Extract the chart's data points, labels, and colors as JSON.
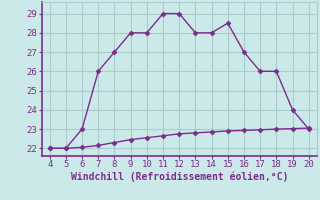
{
  "xlabel": "Windchill (Refroidissement éolien,°C)",
  "x_upper": [
    4,
    5,
    6,
    7,
    8,
    9,
    10,
    11,
    12,
    13,
    14,
    15,
    16,
    17,
    18,
    19,
    20
  ],
  "y_upper": [
    22,
    22,
    23,
    26,
    27,
    28,
    28,
    29,
    29,
    28,
    28,
    28.5,
    27,
    26,
    26,
    24,
    23
  ],
  "x_lower": [
    4,
    5,
    6,
    7,
    8,
    9,
    10,
    11,
    12,
    13,
    14,
    15,
    16,
    17,
    18,
    19,
    20
  ],
  "y_lower": [
    22,
    22,
    22.05,
    22.15,
    22.3,
    22.45,
    22.55,
    22.65,
    22.75,
    22.8,
    22.85,
    22.9,
    22.93,
    22.96,
    23.0,
    23.02,
    23.05
  ],
  "line_color": "#7B2D8B",
  "markersize": 2.5,
  "linewidth": 1.0,
  "bg_color": "#cce9e9",
  "grid_color": "#aacccc",
  "ylim": [
    21.6,
    29.6
  ],
  "xlim": [
    3.5,
    20.5
  ],
  "yticks": [
    22,
    23,
    24,
    25,
    26,
    27,
    28,
    29
  ],
  "xticks": [
    4,
    5,
    6,
    7,
    8,
    9,
    10,
    11,
    12,
    13,
    14,
    15,
    16,
    17,
    18,
    19,
    20
  ],
  "tick_fontsize": 6.5,
  "xlabel_fontsize": 7.0
}
